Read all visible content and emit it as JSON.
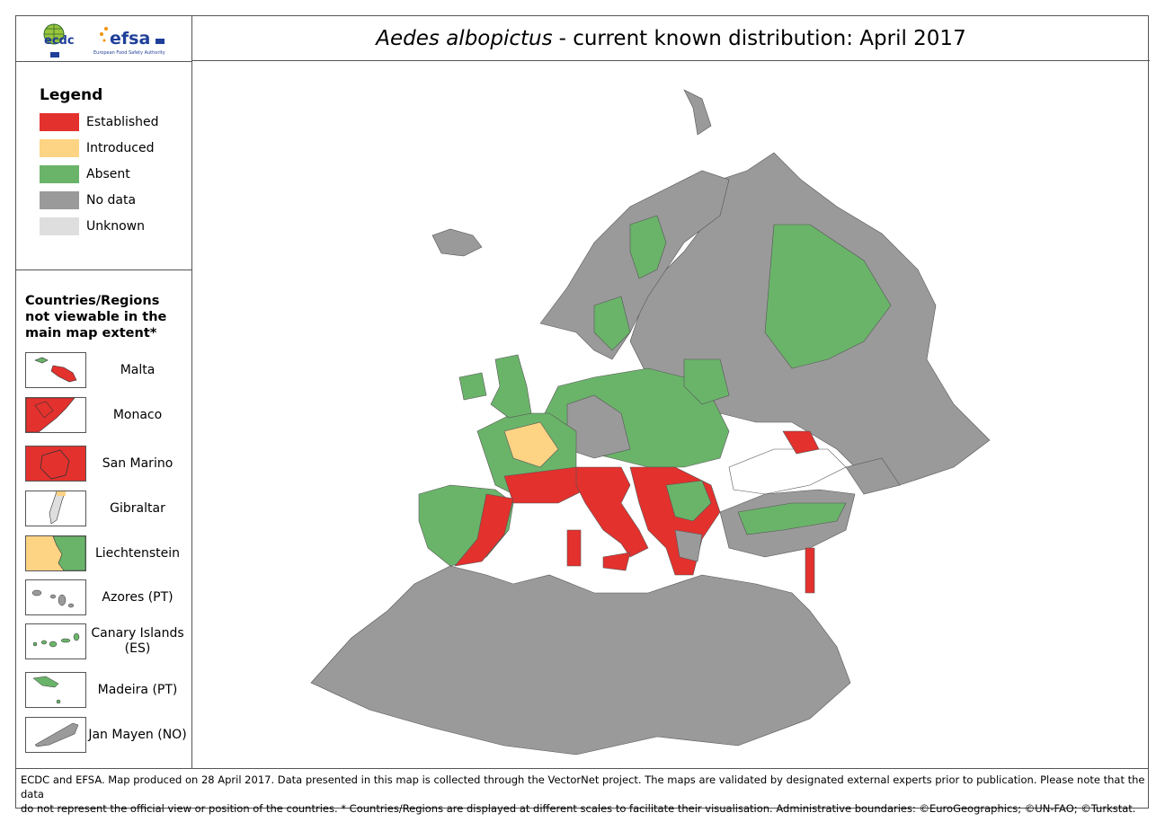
{
  "header": {
    "logo_ecdc": "ecdc",
    "logo_efsa": "efsa",
    "logo_efsa_sub": "European Food Safety Authority",
    "title_species": "Aedes albopictus",
    "title_rest": "- current known distribution: April 2017"
  },
  "legend": {
    "title": "Legend",
    "items": [
      {
        "label": "Established",
        "color": "#e3312d"
      },
      {
        "label": "Introduced",
        "color": "#fdd384"
      },
      {
        "label": "Absent",
        "color": "#6ab46a"
      },
      {
        "label": "No data",
        "color": "#9a9a9a"
      },
      {
        "label": "Unknown",
        "color": "#dedede"
      }
    ]
  },
  "regions": {
    "title": "Countries/Regions not viewable in the main map extent*",
    "items": [
      "Malta",
      "Monaco",
      "San Marino",
      "Gibraltar",
      "Liechtenstein",
      "Azores (PT)",
      "Canary Islands (ES)",
      "Madeira (PT)",
      "Jan Mayen (NO)"
    ]
  },
  "footer": {
    "lines": [
      "ECDC and EFSA. Map produced on 28 April 2017. Data presented in this map is collected through the VectorNet project. The maps are validated by designated external experts prior to publication. Please note that the data",
      "do not represent the official view or position of the countries. * Countries/Regions are displayed at different scales to facilitate their visualisation. Administrative boundaries: ©EuroGeographics; ©UN-FAO; ©Turkstat."
    ]
  }
}
